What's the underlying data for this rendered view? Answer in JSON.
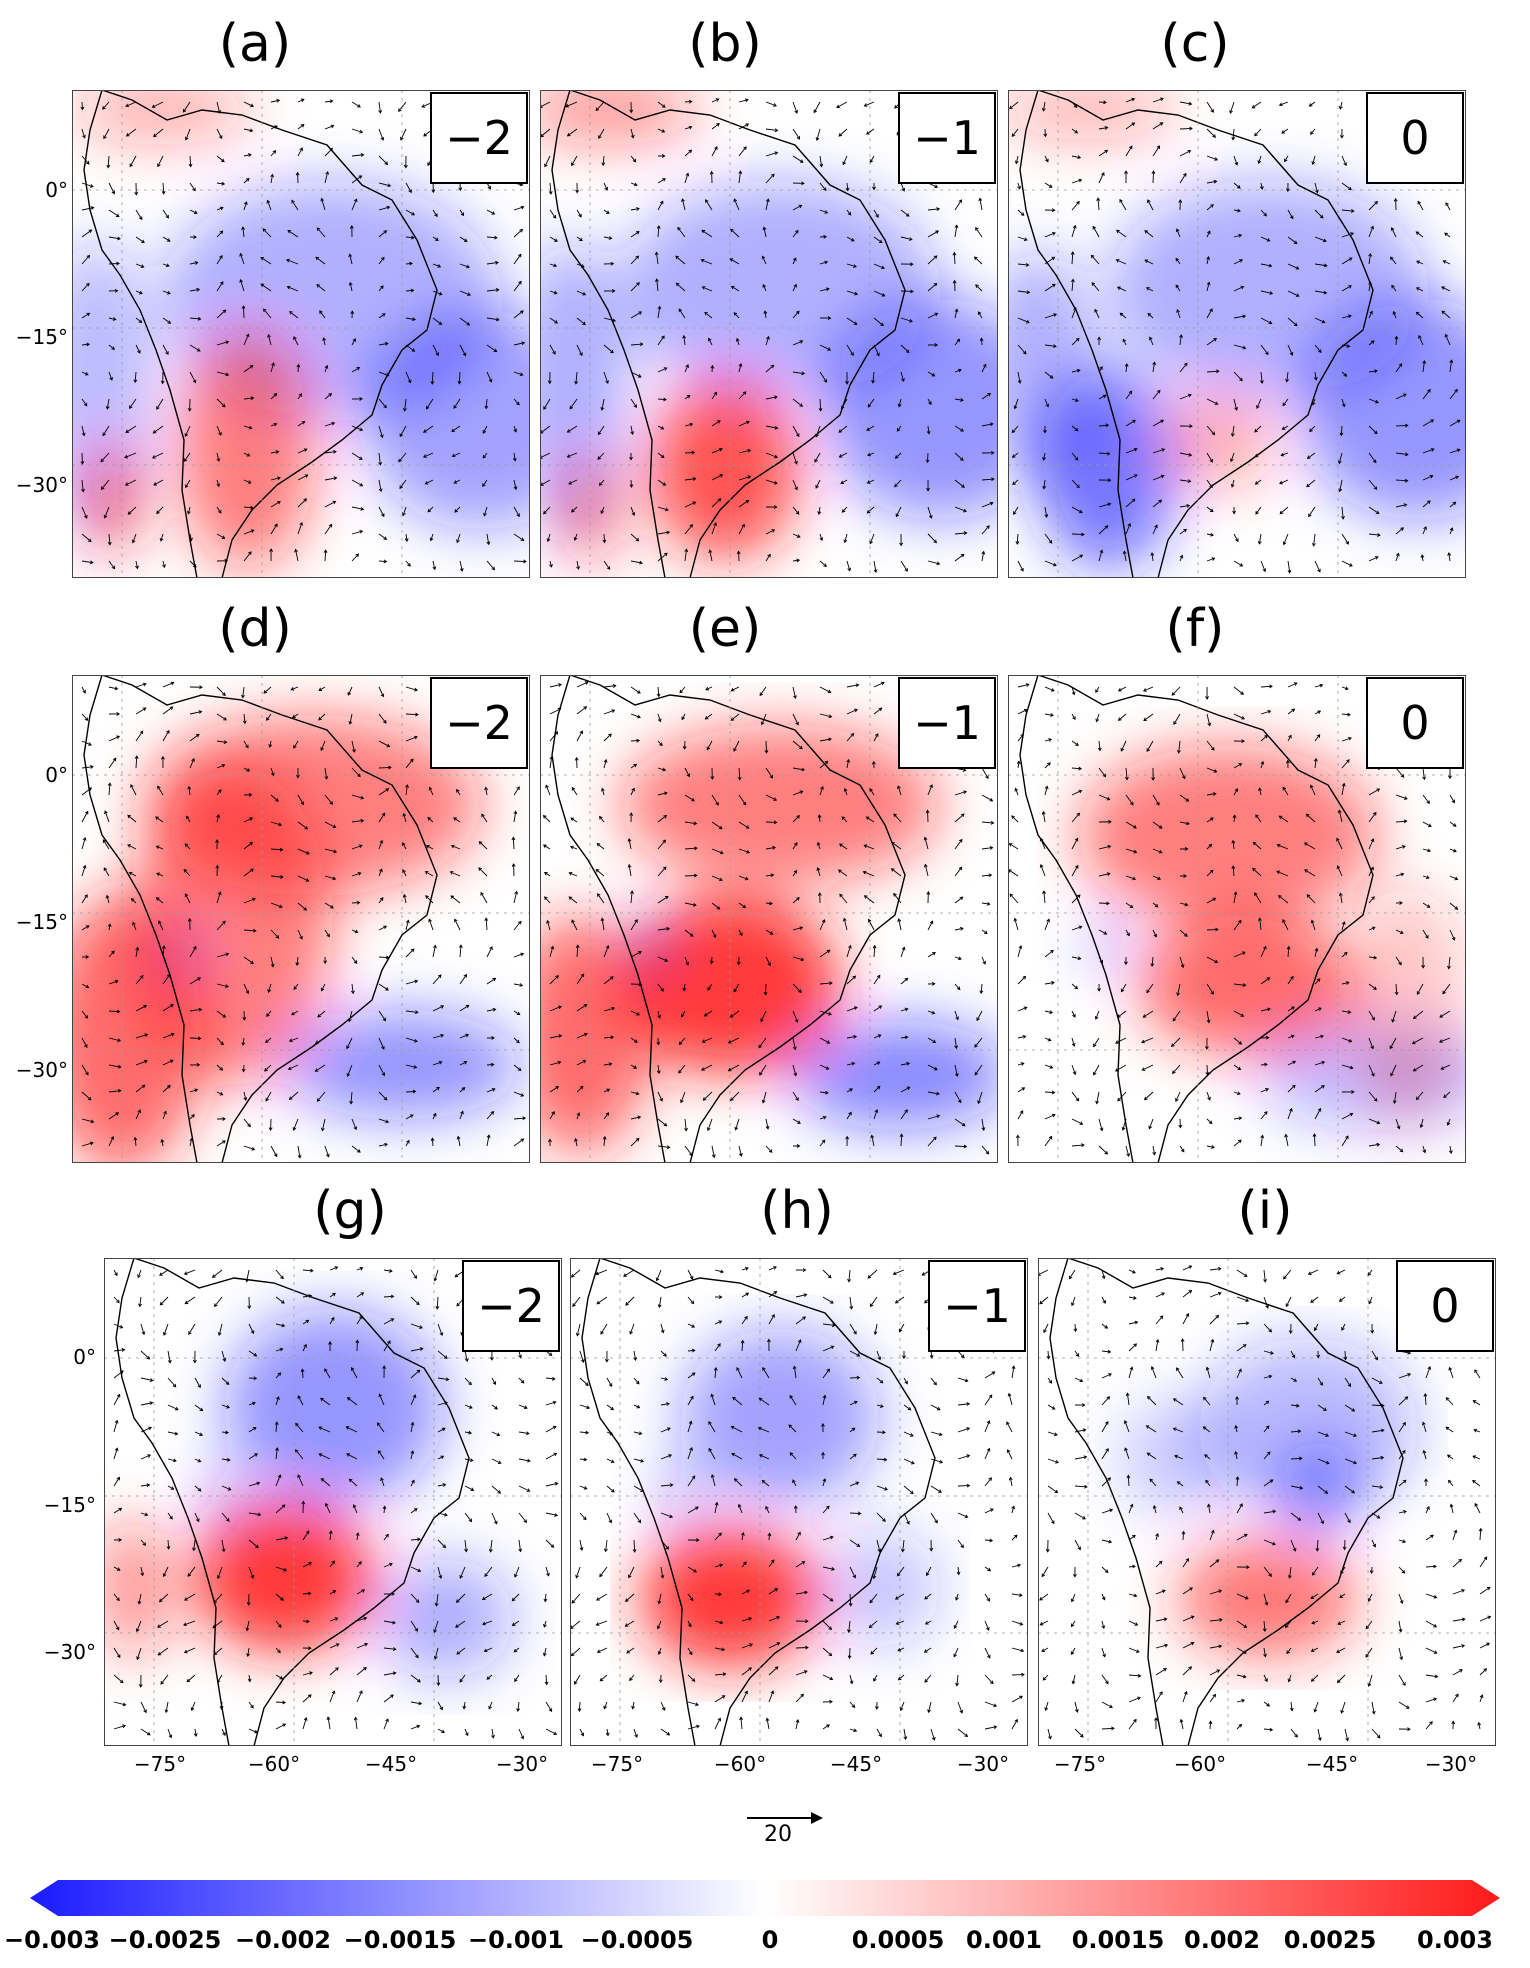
{
  "panels": [
    {
      "letter": "(a)",
      "lag": "−2"
    },
    {
      "letter": "(b)",
      "lag": "−1"
    },
    {
      "letter": "(c)",
      "lag": "0"
    },
    {
      "letter": "(d)",
      "lag": "−2"
    },
    {
      "letter": "(e)",
      "lag": "−1"
    },
    {
      "letter": "(f)",
      "lag": "0"
    },
    {
      "letter": "(g)",
      "lag": "−2"
    },
    {
      "letter": "(h)",
      "lag": "−1"
    },
    {
      "letter": "(i)",
      "lag": "0"
    }
  ],
  "lat_ticks": [
    "0°",
    "−15°",
    "−30°"
  ],
  "lon_ticks": [
    "−75°",
    "−60°",
    "−45°",
    "−30°"
  ],
  "reference_vector": "20",
  "colorbar": {
    "labels": [
      "−0.003",
      "−0.0025",
      "−0.002",
      "−0.0015",
      "−0.001",
      "−0.0005",
      "0",
      "0.0005",
      "0.001",
      "0.0015",
      "0.002",
      "0.0025",
      "0.003"
    ],
    "colors": {
      "negative": "#1a1aff",
      "zero": "#ffffff",
      "positive": "#ff1a1a"
    }
  }
}
